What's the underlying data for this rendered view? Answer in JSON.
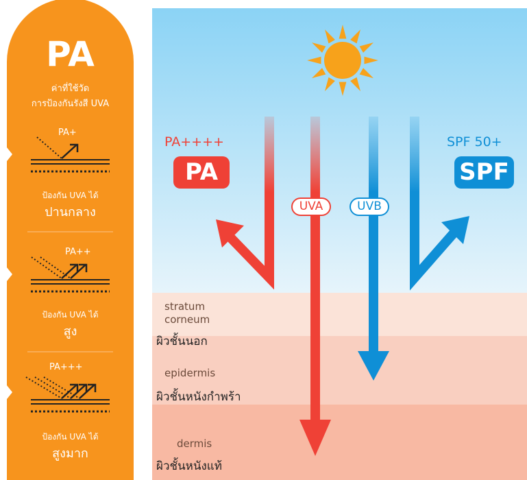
{
  "left_panel": {
    "title": "PA",
    "subtitle_lines": [
      "ค่าที่ใช้วัด",
      "การป้องกันรังสี UVA"
    ],
    "levels": [
      {
        "label": "PA+",
        "caption": "ป้องกัน UVA ได้",
        "rating": "ปานกลาง"
      },
      {
        "label": "PA++",
        "caption": "ป้องกัน UVA ได้",
        "rating": "สูง"
      },
      {
        "label": "PA+++",
        "caption": "ป้องกัน UVA ได้",
        "rating": "สูงมาก"
      }
    ]
  },
  "diagram": {
    "pa_rating": "PA++++",
    "pa_badge": "PA",
    "spf_rating": "SPF 50+",
    "spf_badge": "SPF",
    "rays": [
      "UVA",
      "UVB"
    ],
    "layers": [
      {
        "name": "stratum corneum",
        "thai": "ผิวชั้นนอก"
      },
      {
        "name": "epidermis",
        "thai": "ผิวชั้นหนังกำพร้า"
      },
      {
        "name": "dermis",
        "thai": "ผิวชั้นหนังแท้"
      }
    ]
  }
}
